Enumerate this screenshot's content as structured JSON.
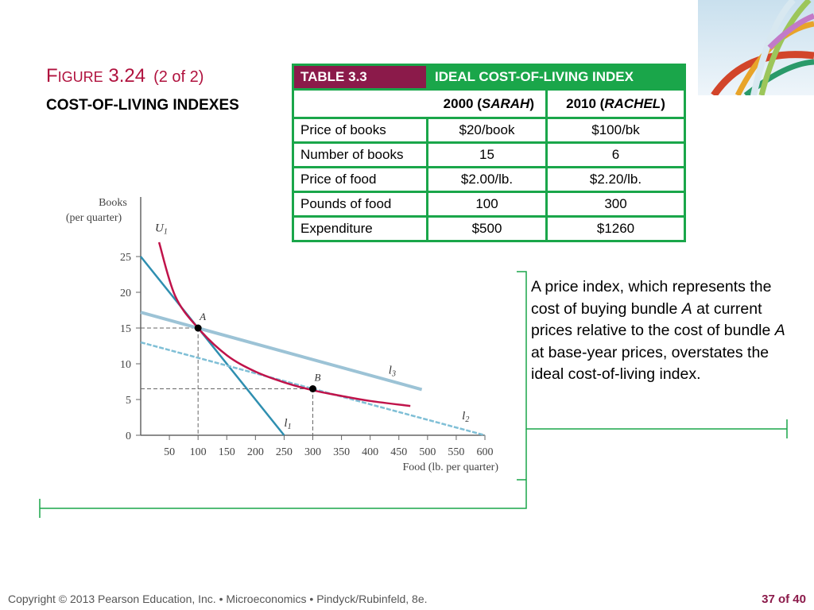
{
  "figure": {
    "label_first": "F",
    "label_rest": "IGURE",
    "number": "3.24",
    "part": "(2 of 2)",
    "subtitle": "COST-OF-LIVING INDEXES"
  },
  "table": {
    "label": "TABLE 3.3",
    "title": "IDEAL COST-OF-LIVING INDEX",
    "col1_year": "2000 (",
    "col1_name": "SARAH",
    "col2_year": "2010 (",
    "col2_name": "RACHEL",
    "close": ")",
    "rows": [
      {
        "label": "Price of books",
        "v1": "$20/book",
        "v2": "$100/bk"
      },
      {
        "label": "Number of books",
        "v1": "15",
        "v2": "6"
      },
      {
        "label": "Price of food",
        "v1": "$2.00/lb.",
        "v2": "$2.20/lb."
      },
      {
        "label": "Pounds of food",
        "v1": "100",
        "v2": "300"
      },
      {
        "label": "Expenditure",
        "v1": "$500",
        "v2": "$1260"
      }
    ]
  },
  "note": {
    "t1": "A price index, which represents the cost of buying bundle ",
    "a1": "A",
    "t2": " at current prices relative to the cost of bundle ",
    "a2": "A",
    "t3": " at base-year prices, overstates the ideal cost-of-living index."
  },
  "footer": {
    "copyright": "Copyright © 2013  Pearson Education, Inc. •  Microeconomics  •  Pindyck/Rubinfeld, 8e.",
    "page": "37 of 40"
  },
  "chart_data": {
    "type": "line",
    "xlabel": "Food (lb. per quarter)",
    "ylabel_1": "Books",
    "ylabel_2": "(per quarter)",
    "xlim": [
      0,
      600
    ],
    "ylim": [
      0,
      25
    ],
    "xticks": [
      50,
      100,
      150,
      200,
      250,
      300,
      350,
      400,
      450,
      500,
      550,
      600
    ],
    "yticks": [
      0,
      5,
      10,
      15,
      20,
      25
    ],
    "series": [
      {
        "name": "l1",
        "label": "l",
        "sub": "1",
        "points": [
          [
            0,
            25
          ],
          [
            250,
            0
          ]
        ],
        "color": "#2f8fb0"
      },
      {
        "name": "l3",
        "label": "l",
        "sub": "3",
        "points": [
          [
            0,
            17.2
          ],
          [
            490,
            6.4
          ]
        ],
        "color": "#9cc3d6"
      },
      {
        "name": "l2",
        "label": "l",
        "sub": "2",
        "points": [
          [
            0,
            13
          ],
          [
            600,
            0
          ]
        ],
        "color": "#7fbfd6",
        "dashed": true
      },
      {
        "name": "U1",
        "label": "U",
        "sub": "1",
        "points": [
          [
            32,
            27
          ],
          [
            60,
            19.5
          ],
          [
            100,
            15
          ],
          [
            150,
            11.2
          ],
          [
            200,
            8.9
          ],
          [
            250,
            7.4
          ],
          [
            300,
            6.3
          ],
          [
            350,
            5.5
          ],
          [
            400,
            4.8
          ],
          [
            470,
            4.1
          ]
        ],
        "color": "#c0134a"
      }
    ],
    "points": [
      {
        "name": "A",
        "x": 100,
        "y": 15
      },
      {
        "name": "B",
        "x": 300,
        "y": 6.5
      }
    ]
  }
}
